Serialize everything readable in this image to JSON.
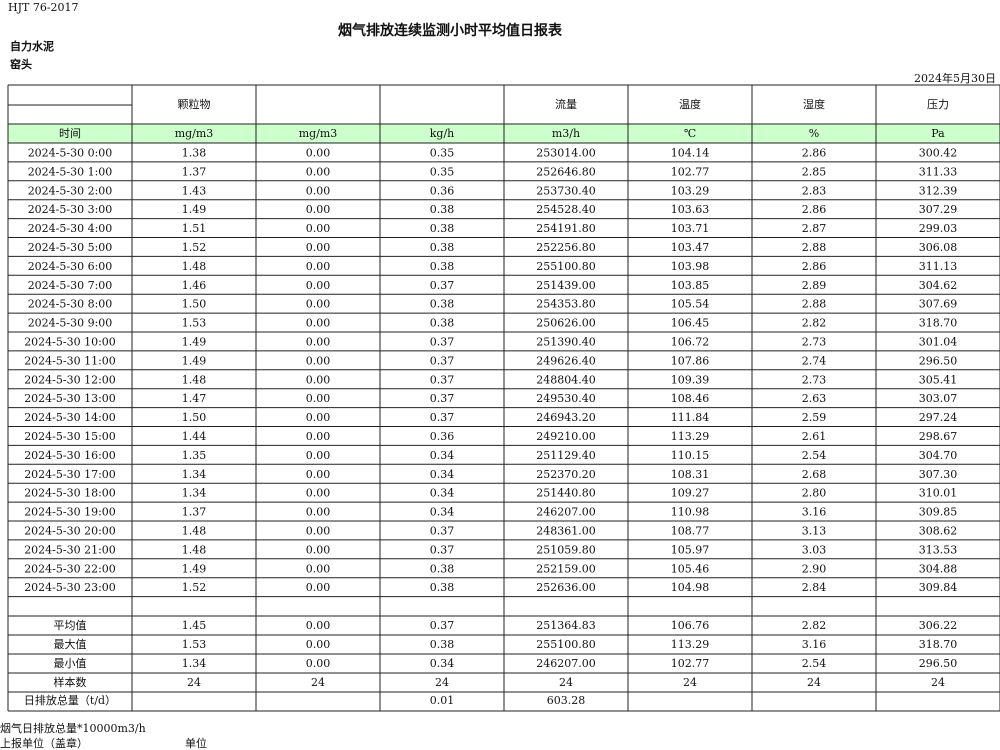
{
  "header": {
    "code": "HJT  76-2017",
    "title": "烟气排放连续监测小时平均值日报表",
    "company": "自力水泥",
    "site": "窑头",
    "date": "2024年5月30日"
  },
  "table": {
    "columns": [
      "颗粒物",
      null,
      null,
      "流量",
      "温度",
      "湿度",
      "压力"
    ],
    "units": [
      "时间",
      "mg/m3",
      "mg/m3",
      "kg/h",
      "m3/h",
      "℃",
      "%",
      "Pa"
    ],
    "rows": [
      [
        "2024-5-30 0:00",
        "1.38",
        "0.00",
        "0.35",
        "253014.00",
        "104.14",
        "2.86",
        "300.42"
      ],
      [
        "2024-5-30 1:00",
        "1.37",
        "0.00",
        "0.35",
        "252646.80",
        "102.77",
        "2.85",
        "311.33"
      ],
      [
        "2024-5-30 2:00",
        "1.43",
        "0.00",
        "0.36",
        "253730.40",
        "103.29",
        "2.83",
        "312.39"
      ],
      [
        "2024-5-30 3:00",
        "1.49",
        "0.00",
        "0.38",
        "254528.40",
        "103.63",
        "2.86",
        "307.29"
      ],
      [
        "2024-5-30 4:00",
        "1.51",
        "0.00",
        "0.38",
        "254191.80",
        "103.71",
        "2.87",
        "299.03"
      ],
      [
        "2024-5-30 5:00",
        "1.52",
        "0.00",
        "0.38",
        "252256.80",
        "103.47",
        "2.88",
        "306.08"
      ],
      [
        "2024-5-30 6:00",
        "1.48",
        "0.00",
        "0.38",
        "255100.80",
        "103.98",
        "2.86",
        "311.13"
      ],
      [
        "2024-5-30 7:00",
        "1.46",
        "0.00",
        "0.37",
        "251439.00",
        "103.85",
        "2.89",
        "304.62"
      ],
      [
        "2024-5-30 8:00",
        "1.50",
        "0.00",
        "0.38",
        "254353.80",
        "105.54",
        "2.88",
        "307.69"
      ],
      [
        "2024-5-30 9:00",
        "1.53",
        "0.00",
        "0.38",
        "250626.00",
        "106.45",
        "2.82",
        "318.70"
      ],
      [
        "2024-5-30 10:00",
        "1.49",
        "0.00",
        "0.37",
        "251390.40",
        "106.72",
        "2.73",
        "301.04"
      ],
      [
        "2024-5-30 11:00",
        "1.49",
        "0.00",
        "0.37",
        "249626.40",
        "107.86",
        "2.74",
        "296.50"
      ],
      [
        "2024-5-30 12:00",
        "1.48",
        "0.00",
        "0.37",
        "248804.40",
        "109.39",
        "2.73",
        "305.41"
      ],
      [
        "2024-5-30 13:00",
        "1.47",
        "0.00",
        "0.37",
        "249530.40",
        "108.46",
        "2.63",
        "303.07"
      ],
      [
        "2024-5-30 14:00",
        "1.50",
        "0.00",
        "0.37",
        "246943.20",
        "111.84",
        "2.59",
        "297.24"
      ],
      [
        "2024-5-30 15:00",
        "1.44",
        "0.00",
        "0.36",
        "249210.00",
        "113.29",
        "2.61",
        "298.67"
      ],
      [
        "2024-5-30 16:00",
        "1.35",
        "0.00",
        "0.34",
        "251129.40",
        "110.15",
        "2.54",
        "304.70"
      ],
      [
        "2024-5-30 17:00",
        "1.34",
        "0.00",
        "0.34",
        "252370.20",
        "108.31",
        "2.68",
        "307.30"
      ],
      [
        "2024-5-30 18:00",
        "1.34",
        "0.00",
        "0.34",
        "251440.80",
        "109.27",
        "2.80",
        "310.01"
      ],
      [
        "2024-5-30 19:00",
        "1.37",
        "0.00",
        "0.34",
        "246207.00",
        "110.98",
        "3.16",
        "309.85"
      ],
      [
        "2024-5-30 20:00",
        "1.48",
        "0.00",
        "0.37",
        "248361.00",
        "108.77",
        "3.13",
        "308.62"
      ],
      [
        "2024-5-30 21:00",
        "1.48",
        "0.00",
        "0.37",
        "251059.80",
        "105.97",
        "3.03",
        "313.53"
      ],
      [
        "2024-5-30 22:00",
        "1.49",
        "0.00",
        "0.38",
        "252159.00",
        "105.46",
        "2.90",
        "304.88"
      ],
      [
        "2024-5-30 23:00",
        "1.52",
        "0.00",
        "0.38",
        "252636.00",
        "104.98",
        "2.84",
        "309.84"
      ]
    ],
    "stats": [
      [
        "平均值",
        "1.45",
        "0.00",
        "0.37",
        "251364.83",
        "106.76",
        "2.82",
        "306.22"
      ],
      [
        "最大值",
        "1.53",
        "0.00",
        "0.38",
        "255100.80",
        "113.29",
        "3.16",
        "318.70"
      ],
      [
        "最小值",
        "1.34",
        "0.00",
        "0.34",
        "246207.00",
        "102.77",
        "2.54",
        "296.50"
      ],
      [
        "样本数",
        "24",
        "24",
        "24",
        "24",
        "24",
        "24",
        "24"
      ]
    ],
    "daily_total": {
      "label": "日排放总量（t/d）",
      "values": [
        "0.01",
        "603.28"
      ]
    }
  },
  "footer": {
    "note": "烟气日排放总量*10000m3/h",
    "reporter": "上报单位（盖章）",
    "unit": "单位"
  }
}
